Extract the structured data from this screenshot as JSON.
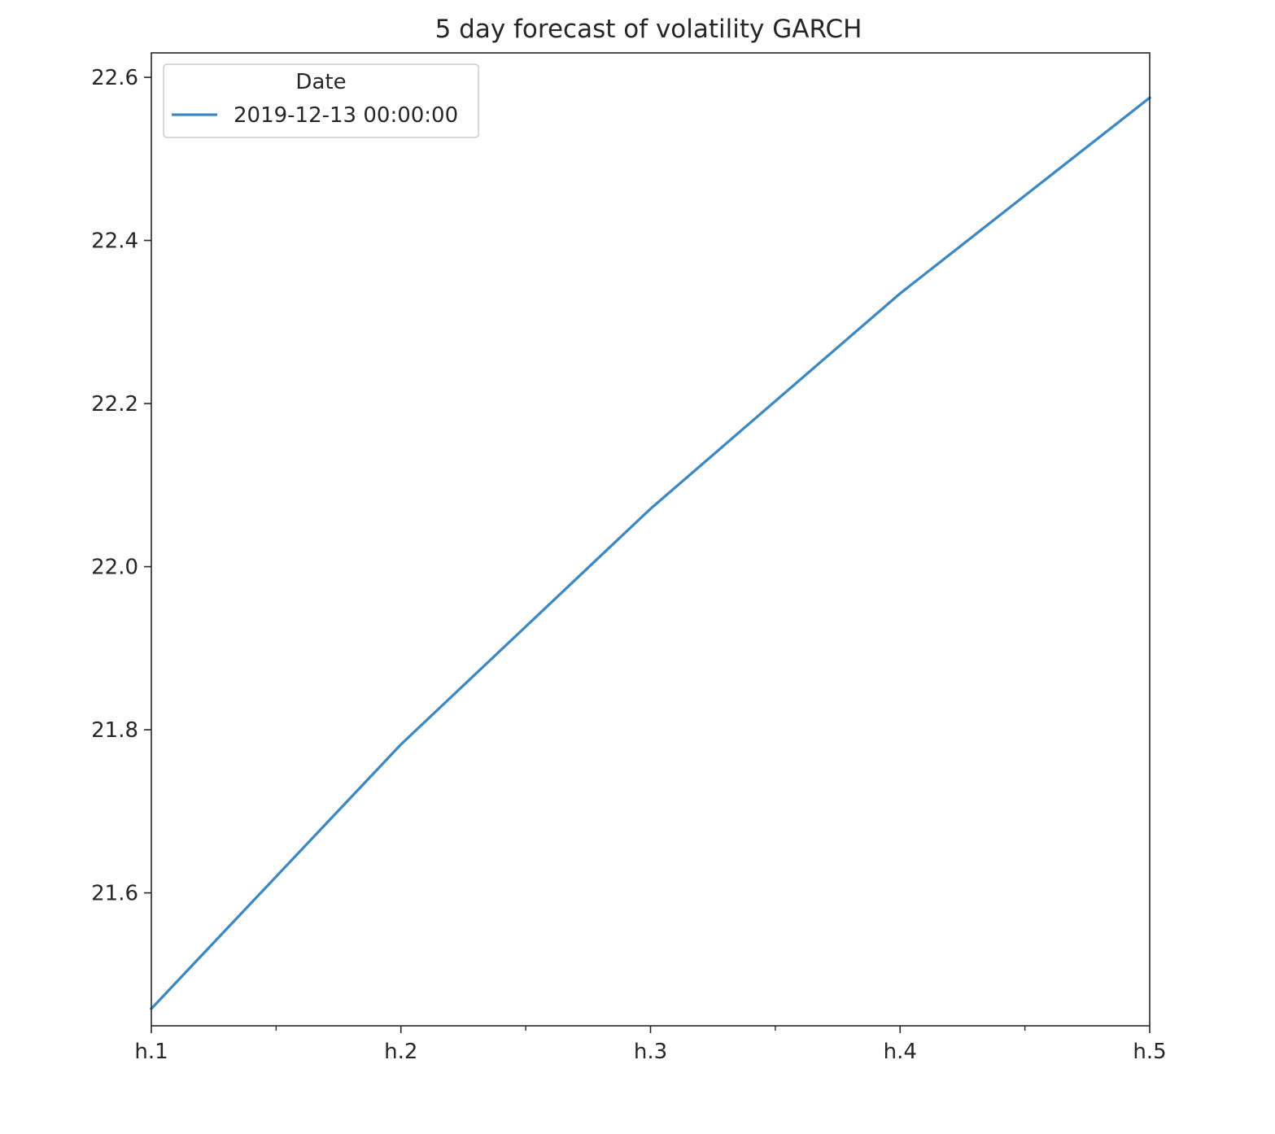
{
  "chart_data": {
    "type": "line",
    "title": "5 day forecast of volatility GARCH",
    "xlabel": "",
    "ylabel": "",
    "categories": [
      "h.1",
      "h.2",
      "h.3",
      "h.4",
      "h.5"
    ],
    "x_minor_ticks": true,
    "ylim": [
      21.437,
      22.63
    ],
    "yticks": [
      21.6,
      21.8,
      22.0,
      22.2,
      22.4,
      22.6
    ],
    "ytick_labels": [
      "21.6",
      "21.8",
      "22.0",
      "22.2",
      "22.4",
      "22.6"
    ],
    "grid": false,
    "legend": {
      "title": "Date",
      "placement": "top-left"
    },
    "series": [
      {
        "name": "2019-12-13 00:00:00",
        "color": "#3a87c3",
        "values": [
          21.458,
          21.782,
          22.071,
          22.335,
          22.575
        ]
      }
    ]
  }
}
